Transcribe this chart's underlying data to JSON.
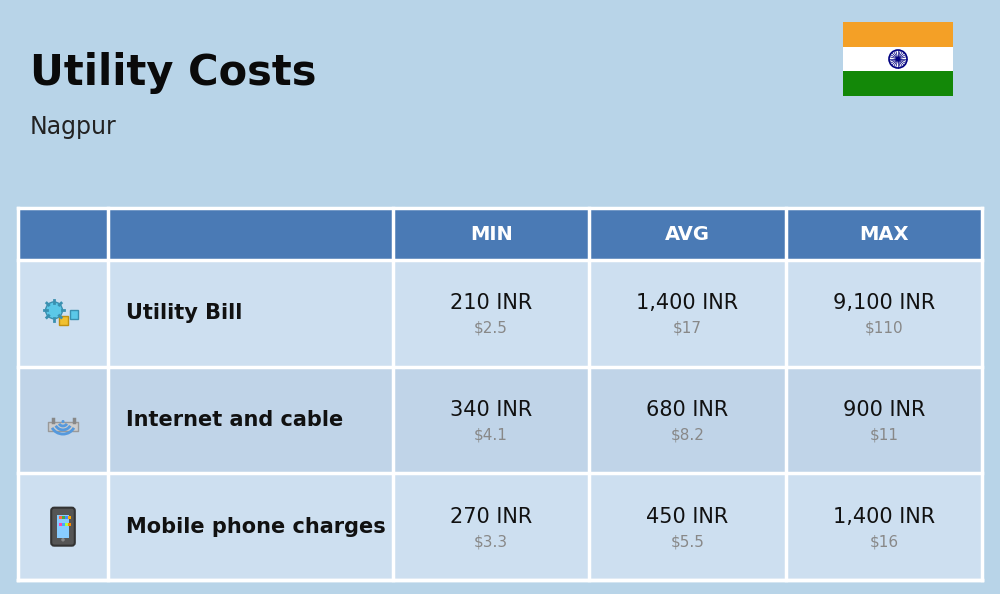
{
  "title": "Utility Costs",
  "subtitle": "Nagpur",
  "bg_color": "#b8d4e8",
  "header_color": "#4a7ab5",
  "header_text_color": "#ffffff",
  "row_color_light": "#cddff0",
  "row_color_mid": "#c0d4e8",
  "row_label_color": "#111111",
  "columns": [
    "MIN",
    "AVG",
    "MAX"
  ],
  "rows": [
    {
      "label": "Utility Bill",
      "min_inr": "210 INR",
      "min_usd": "$2.5",
      "avg_inr": "1,400 INR",
      "avg_usd": "$17",
      "max_inr": "9,100 INR",
      "max_usd": "$110"
    },
    {
      "label": "Internet and cable",
      "min_inr": "340 INR",
      "min_usd": "$4.1",
      "avg_inr": "680 INR",
      "avg_usd": "$8.2",
      "max_inr": "900 INR",
      "max_usd": "$11"
    },
    {
      "label": "Mobile phone charges",
      "min_inr": "270 INR",
      "min_usd": "$3.3",
      "avg_inr": "450 INR",
      "avg_usd": "$5.5",
      "max_inr": "1,400 INR",
      "max_usd": "$16"
    }
  ],
  "title_fontsize": 30,
  "subtitle_fontsize": 17,
  "header_fontsize": 14,
  "cell_inr_fontsize": 15,
  "cell_usd_fontsize": 11,
  "label_fontsize": 15,
  "india_flag_colors": [
    "#f4a026",
    "#ffffff",
    "#138808"
  ],
  "india_flag_chakra_color": "#000080",
  "divider_color": "#ffffff",
  "usd_color": "#888888"
}
